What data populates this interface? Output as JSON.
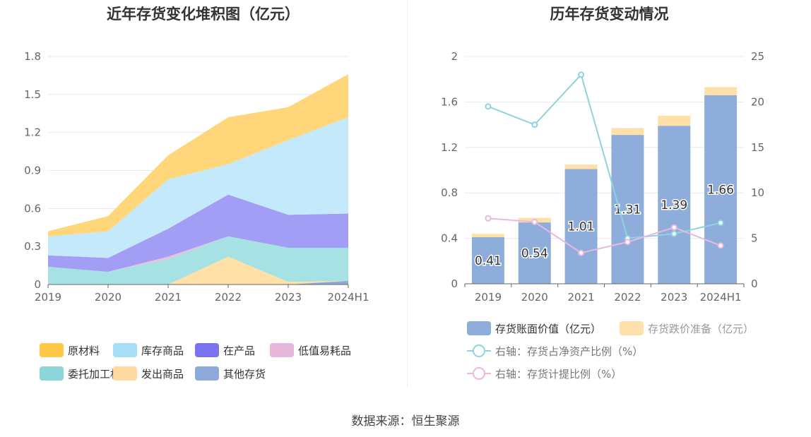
{
  "source_label": "数据来源：恒生聚源",
  "chart_data": [
    {
      "type": "area",
      "stacked": true,
      "title": "近年存货变化堆积图（亿元）",
      "categories": [
        "2019",
        "2020",
        "2021",
        "2022",
        "2023",
        "2024H1"
      ],
      "y_ticks": [
        "0",
        "0.3",
        "0.6",
        "0.9",
        "1.2",
        "1.5",
        "1.8"
      ],
      "ylim": [
        0,
        1.8
      ],
      "grid": true,
      "legend_position": "bottom",
      "series": [
        {
          "name": "其他存货",
          "color": "#8eaadb",
          "values": [
            0,
            0,
            0,
            0,
            0,
            0.03
          ]
        },
        {
          "name": "发出商品",
          "color": "#ffe0a6",
          "values": [
            0,
            0,
            0,
            0.22,
            0.02,
            0
          ]
        },
        {
          "name": "委托加工材料",
          "color": "#a6e2e3",
          "values": [
            0.14,
            0.1,
            0.2,
            0.16,
            0.27,
            0.26
          ]
        },
        {
          "name": "低值易耗品",
          "color": "#e9bfe0",
          "values": [
            0,
            0,
            0.02,
            0,
            0,
            0
          ]
        },
        {
          "name": "在产品",
          "color": "#a29df5",
          "values": [
            0.09,
            0.11,
            0.22,
            0.33,
            0.26,
            0.27
          ]
        },
        {
          "name": "库存商品",
          "color": "#c4e9fb",
          "values": [
            0.15,
            0.21,
            0.39,
            0.24,
            0.59,
            0.76
          ]
        },
        {
          "name": "原材料",
          "color": "#ffd67a",
          "values": [
            0.04,
            0.12,
            0.19,
            0.37,
            0.26,
            0.34
          ]
        }
      ],
      "legend": [
        {
          "name": "原材料",
          "color": "#ffc845"
        },
        {
          "name": "库存商品",
          "color": "#a6def7"
        },
        {
          "name": "在产品",
          "color": "#7b73ee"
        },
        {
          "name": "低值易耗品",
          "color": "#e7b6dc"
        },
        {
          "name": "委托加工材料",
          "color": "#8cd6d9"
        },
        {
          "name": "发出商品",
          "color": "#ffd9a0"
        },
        {
          "name": "其他存货",
          "color": "#8eaadb"
        }
      ]
    },
    {
      "type": "bar",
      "title": "历年存货变动情况",
      "categories": [
        "2019",
        "2020",
        "2021",
        "2022",
        "2023",
        "2024H1"
      ],
      "y_ticks": [
        "0",
        "0.4",
        "0.8",
        "1.2",
        "1.6",
        "2"
      ],
      "ylim": [
        0,
        2
      ],
      "y2_ticks": [
        "0",
        "5",
        "10",
        "15",
        "20",
        "25"
      ],
      "y2lim": [
        0,
        25
      ],
      "grid": true,
      "legend_position": "bottom",
      "bar_series": [
        {
          "name": "存货账面价值（亿元）",
          "color": "#8eaddb",
          "values": [
            0.41,
            0.54,
            1.01,
            1.31,
            1.39,
            1.66
          ],
          "labels": [
            "0.41",
            "0.54",
            "1.01",
            "1.31",
            "1.39",
            "1.66"
          ]
        },
        {
          "name": "存货跌价准备（亿元）",
          "color": "#ffe0a8",
          "values": [
            0.03,
            0.04,
            0.04,
            0.06,
            0.09,
            0.07
          ]
        }
      ],
      "line_series": [
        {
          "name": "右轴：存货占净资产比例（%）",
          "color": "#8ed3dd",
          "values": [
            19.5,
            17.5,
            23.0,
            5.0,
            5.5,
            6.7
          ]
        },
        {
          "name": "右轴：存货计提比例（%）",
          "color": "#e8b8de",
          "values": [
            7.2,
            6.8,
            3.4,
            4.6,
            6.2,
            4.2
          ]
        }
      ]
    }
  ]
}
